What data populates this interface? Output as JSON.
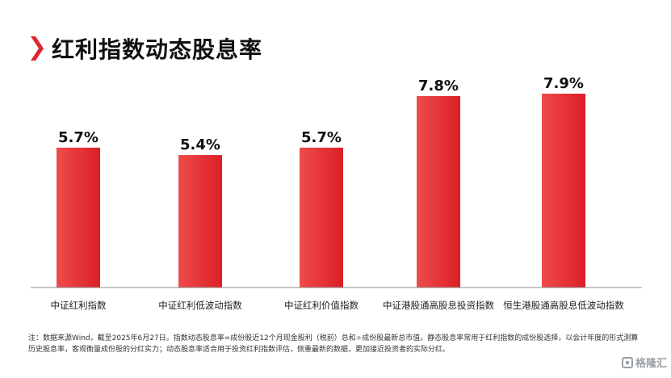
{
  "title": "红利指数动态股息率",
  "colors": {
    "accent": "#e0262c",
    "bar_dark": "#db1f26",
    "bar_light": "#ef4b4b"
  },
  "chart_data": {
    "type": "bar",
    "categories": [
      "中证红利指数",
      "中证红利低波动指数",
      "中证红利价值指数",
      "中证港股通高股息投资指数",
      "恒生港股通高股息低波动指数"
    ],
    "values": [
      5.7,
      5.4,
      5.7,
      7.8,
      7.9
    ],
    "data_labels": [
      "5.7%",
      "5.4%",
      "5.7%",
      "7.8%",
      "7.9%"
    ],
    "ylim": [
      0,
      10.4
    ],
    "grid": false,
    "legend": "none"
  },
  "footnote": "注：数据来源Wind，截至2025年6月27日。指数动态股息率=成份股近12个月现金股利（税前）总和÷成份股最新总市值。静态股息率常用于红利指数的成份股选择，以会计年度的形式测算历史股息率，客观衡量成份股的分红实力；动态股息率适合用于投资红利指数评估，侧重最新的数据，更加接近投资者的实际分红。",
  "watermark": "格隆汇",
  "watermark_icon": "square-logo-icon"
}
